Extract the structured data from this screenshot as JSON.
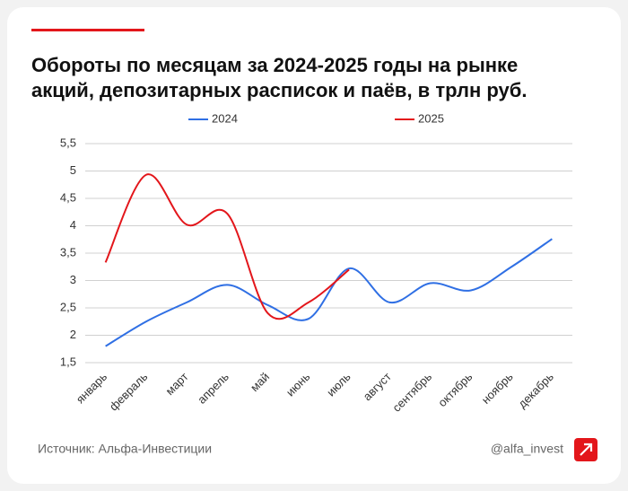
{
  "chart_data": {
    "type": "line",
    "title": [
      "Обороты по месяцам за 2024-2025 годы на рынке",
      "акций, депозитарных расписок и паёв, в трлн руб."
    ],
    "categories": [
      "январь",
      "февраль",
      "март",
      "апрель",
      "май",
      "июнь",
      "июль",
      "август",
      "сентябрь",
      "октябрь",
      "ноябрь",
      "декабрь"
    ],
    "series": [
      {
        "name": "2024",
        "color": "#2f6fe4",
        "values": [
          1.8,
          2.25,
          2.6,
          2.92,
          2.55,
          2.3,
          3.22,
          2.6,
          2.95,
          2.82,
          3.25,
          3.76
        ]
      },
      {
        "name": "2025",
        "color": "#e3161b",
        "values": [
          3.33,
          4.93,
          4.02,
          4.22,
          2.4,
          2.6,
          3.2,
          null,
          null,
          null,
          null,
          null
        ]
      }
    ],
    "ylim": [
      1.5,
      5.5
    ],
    "yticks": [
      {
        "value": 1.5,
        "label": "1,5"
      },
      2,
      {
        "value": 2.5,
        "label": "2,5"
      },
      3,
      {
        "value": 3.5,
        "label": "3,5"
      },
      4,
      {
        "value": 4.5,
        "label": "4,5"
      },
      5,
      {
        "value": 5.5,
        "label": "5,5"
      }
    ],
    "smooth": true
  },
  "footer": {
    "source": "Источник: Альфа-Инвестиции",
    "handle": "@alfa_invest"
  }
}
